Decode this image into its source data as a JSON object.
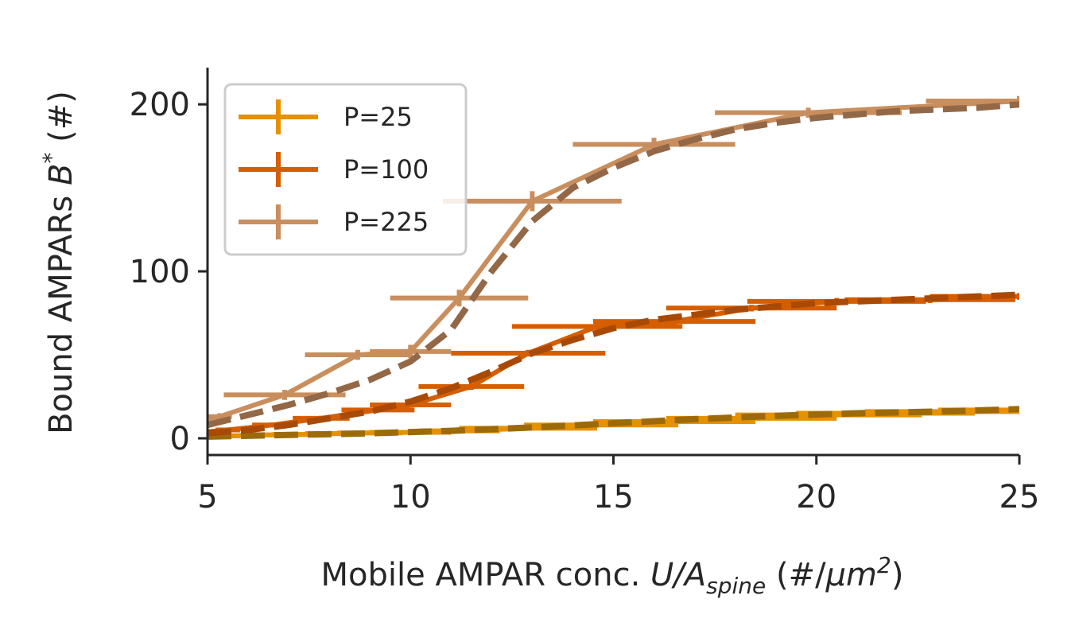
{
  "chart_data": {
    "type": "line",
    "xlabel": {
      "main": "Mobile AMPAR conc. ",
      "var_u": "U",
      "slash": "/",
      "var_a": "A",
      "sub": "spine",
      "units_open": " (#/",
      "mu": "μm",
      "sup": "2",
      "units_close": ")"
    },
    "ylabel": {
      "main": "Bound AMPARs ",
      "var_b": "B",
      "sup": "*",
      "units": " (#)"
    },
    "xlim": [
      5,
      25
    ],
    "ylim": [
      -10,
      222
    ],
    "xticks": [
      "5",
      "10",
      "15",
      "20",
      "25"
    ],
    "xtick_values": [
      5,
      10,
      15,
      20,
      25
    ],
    "yticks": [
      "0",
      "100",
      "200"
    ],
    "ytick_values": [
      0,
      100,
      200
    ],
    "legend_position": "upper-left",
    "series": [
      {
        "name": "P=25",
        "color": "#E69100",
        "fit_color": "#9C6A08",
        "x": [
          5.0,
          5.6,
          6.4,
          7.3,
          8.1,
          9.0,
          10.0,
          11.2,
          12.9,
          14.7,
          16.5,
          18.4,
          20.3,
          21.7,
          23.2,
          25.0
        ],
        "y": [
          1.0,
          1.5,
          2.0,
          2.3,
          2.8,
          3.2,
          3.6,
          4.5,
          6.0,
          8.0,
          10.0,
          12.0,
          14.0,
          15.0,
          16.0,
          17.0
        ],
        "xerr": [
          [
            4.9,
            5.1
          ],
          [
            5.4,
            5.8
          ],
          [
            5.9,
            6.9
          ],
          [
            6.6,
            8.0
          ],
          [
            7.4,
            8.8
          ],
          [
            8.2,
            9.8
          ],
          [
            9.0,
            11.0
          ],
          [
            10.2,
            12.2
          ],
          [
            11.2,
            14.6
          ],
          [
            12.8,
            16.6
          ],
          [
            14.5,
            18.5
          ],
          [
            16.3,
            20.5
          ],
          [
            18.0,
            22.6
          ],
          [
            19.5,
            23.9
          ],
          [
            21.2,
            25.2
          ],
          [
            23.0,
            27.0
          ]
        ],
        "yerr": [
          [
            0.0,
            2.0
          ],
          [
            0.5,
            2.5
          ],
          [
            1.0,
            3.0
          ],
          [
            1.3,
            3.3
          ],
          [
            1.8,
            3.8
          ],
          [
            2.2,
            4.2
          ],
          [
            2.6,
            4.6
          ],
          [
            3.5,
            5.5
          ],
          [
            5.0,
            7.0
          ],
          [
            7.0,
            9.0
          ],
          [
            9.0,
            11.0
          ],
          [
            11.0,
            13.0
          ],
          [
            13.0,
            15.0
          ],
          [
            14.0,
            16.0
          ],
          [
            15.0,
            17.0
          ],
          [
            16.0,
            18.0
          ]
        ],
        "fit_x": [
          5,
          7,
          9,
          11,
          13,
          15,
          17,
          19,
          21,
          23,
          25
        ],
        "fit_y": [
          1.0,
          2.0,
          3.0,
          4.5,
          6.5,
          9.0,
          11.5,
          13.5,
          15.0,
          16.0,
          17.5
        ]
      },
      {
        "name": "P=100",
        "color": "#D55E00",
        "fit_color": "#A84A06",
        "x": [
          5.0,
          5.5,
          6.6,
          7.8,
          9.2,
          10.0,
          11.5,
          12.9,
          14.6,
          16.5,
          18.4,
          20.5,
          22.8,
          25.0
        ],
        "y": [
          4.0,
          5.0,
          8.0,
          12.0,
          17.0,
          20.0,
          31.0,
          51.0,
          67.0,
          70.0,
          78.0,
          82.0,
          83.0,
          85.0
        ],
        "xerr": [
          [
            4.9,
            5.1
          ],
          [
            5.2,
            5.8
          ],
          [
            6.1,
            7.1
          ],
          [
            7.1,
            8.5
          ],
          [
            8.3,
            10.1
          ],
          [
            9.0,
            11.0
          ],
          [
            10.2,
            12.8
          ],
          [
            11.0,
            14.8
          ],
          [
            12.5,
            16.7
          ],
          [
            14.5,
            18.5
          ],
          [
            16.3,
            20.5
          ],
          [
            18.3,
            22.7
          ],
          [
            20.7,
            24.9
          ],
          [
            22.8,
            27.2
          ]
        ],
        "yerr": [
          [
            2.5,
            5.5
          ],
          [
            3.5,
            6.5
          ],
          [
            6.5,
            9.5
          ],
          [
            10.5,
            13.5
          ],
          [
            15.5,
            18.5
          ],
          [
            18.5,
            21.5
          ],
          [
            29.0,
            33.0
          ],
          [
            49.0,
            53.0
          ],
          [
            65.0,
            69.0
          ],
          [
            68.0,
            72.0
          ],
          [
            76.0,
            80.0
          ],
          [
            80.0,
            84.0
          ],
          [
            81.0,
            85.0
          ],
          [
            83.0,
            87.0
          ]
        ],
        "fit_x": [
          5,
          6,
          7,
          8,
          9,
          10,
          11,
          12,
          13,
          14,
          15,
          16,
          17,
          18,
          19,
          20,
          21,
          22,
          23,
          24,
          25
        ],
        "fit_y": [
          3.0,
          5.0,
          8.0,
          12.0,
          16.0,
          22.0,
          30.0,
          40.0,
          51.0,
          59.0,
          66.0,
          71.0,
          74.0,
          77.0,
          79.0,
          81.0,
          82.0,
          83.0,
          84.0,
          85.0,
          86.0
        ]
      },
      {
        "name": "P=225",
        "color": "#C98E5E",
        "fit_color": "#936847",
        "x": [
          5.0,
          5.3,
          6.9,
          8.7,
          10.0,
          11.2,
          13.0,
          16.0,
          19.8,
          25.0
        ],
        "y": [
          10.0,
          13.0,
          26.0,
          50.0,
          52.0,
          84.0,
          142.0,
          176.0,
          195.0,
          202.0
        ],
        "xerr": [
          [
            4.9,
            5.1
          ],
          [
            5.0,
            5.6
          ],
          [
            5.4,
            8.4
          ],
          [
            7.4,
            10.0
          ],
          [
            9.0,
            11.0
          ],
          [
            9.5,
            12.9
          ],
          [
            10.8,
            15.2
          ],
          [
            14.0,
            18.0
          ],
          [
            17.5,
            22.1
          ],
          [
            22.7,
            27.3
          ]
        ],
        "yerr": [
          [
            8.0,
            12.0
          ],
          [
            11.0,
            15.0
          ],
          [
            23.0,
            29.0
          ],
          [
            47.0,
            53.0
          ],
          [
            48.0,
            56.0
          ],
          [
            79.0,
            89.0
          ],
          [
            136.0,
            148.0
          ],
          [
            172.0,
            180.0
          ],
          [
            192.0,
            198.0
          ],
          [
            199.0,
            205.0
          ]
        ],
        "fit_x": [
          5,
          6,
          7,
          8,
          9,
          10,
          11,
          12,
          13,
          14,
          15,
          16,
          17,
          18,
          19,
          20,
          21,
          22,
          23,
          24,
          25
        ],
        "fit_y": [
          8.0,
          14.0,
          20.0,
          27.0,
          35.0,
          46.0,
          65.0,
          100.0,
          130.0,
          150.0,
          162.0,
          172.0,
          179.0,
          185.0,
          189.0,
          192.0,
          194.0,
          196.0,
          197.0,
          198.0,
          200.0
        ]
      }
    ]
  }
}
